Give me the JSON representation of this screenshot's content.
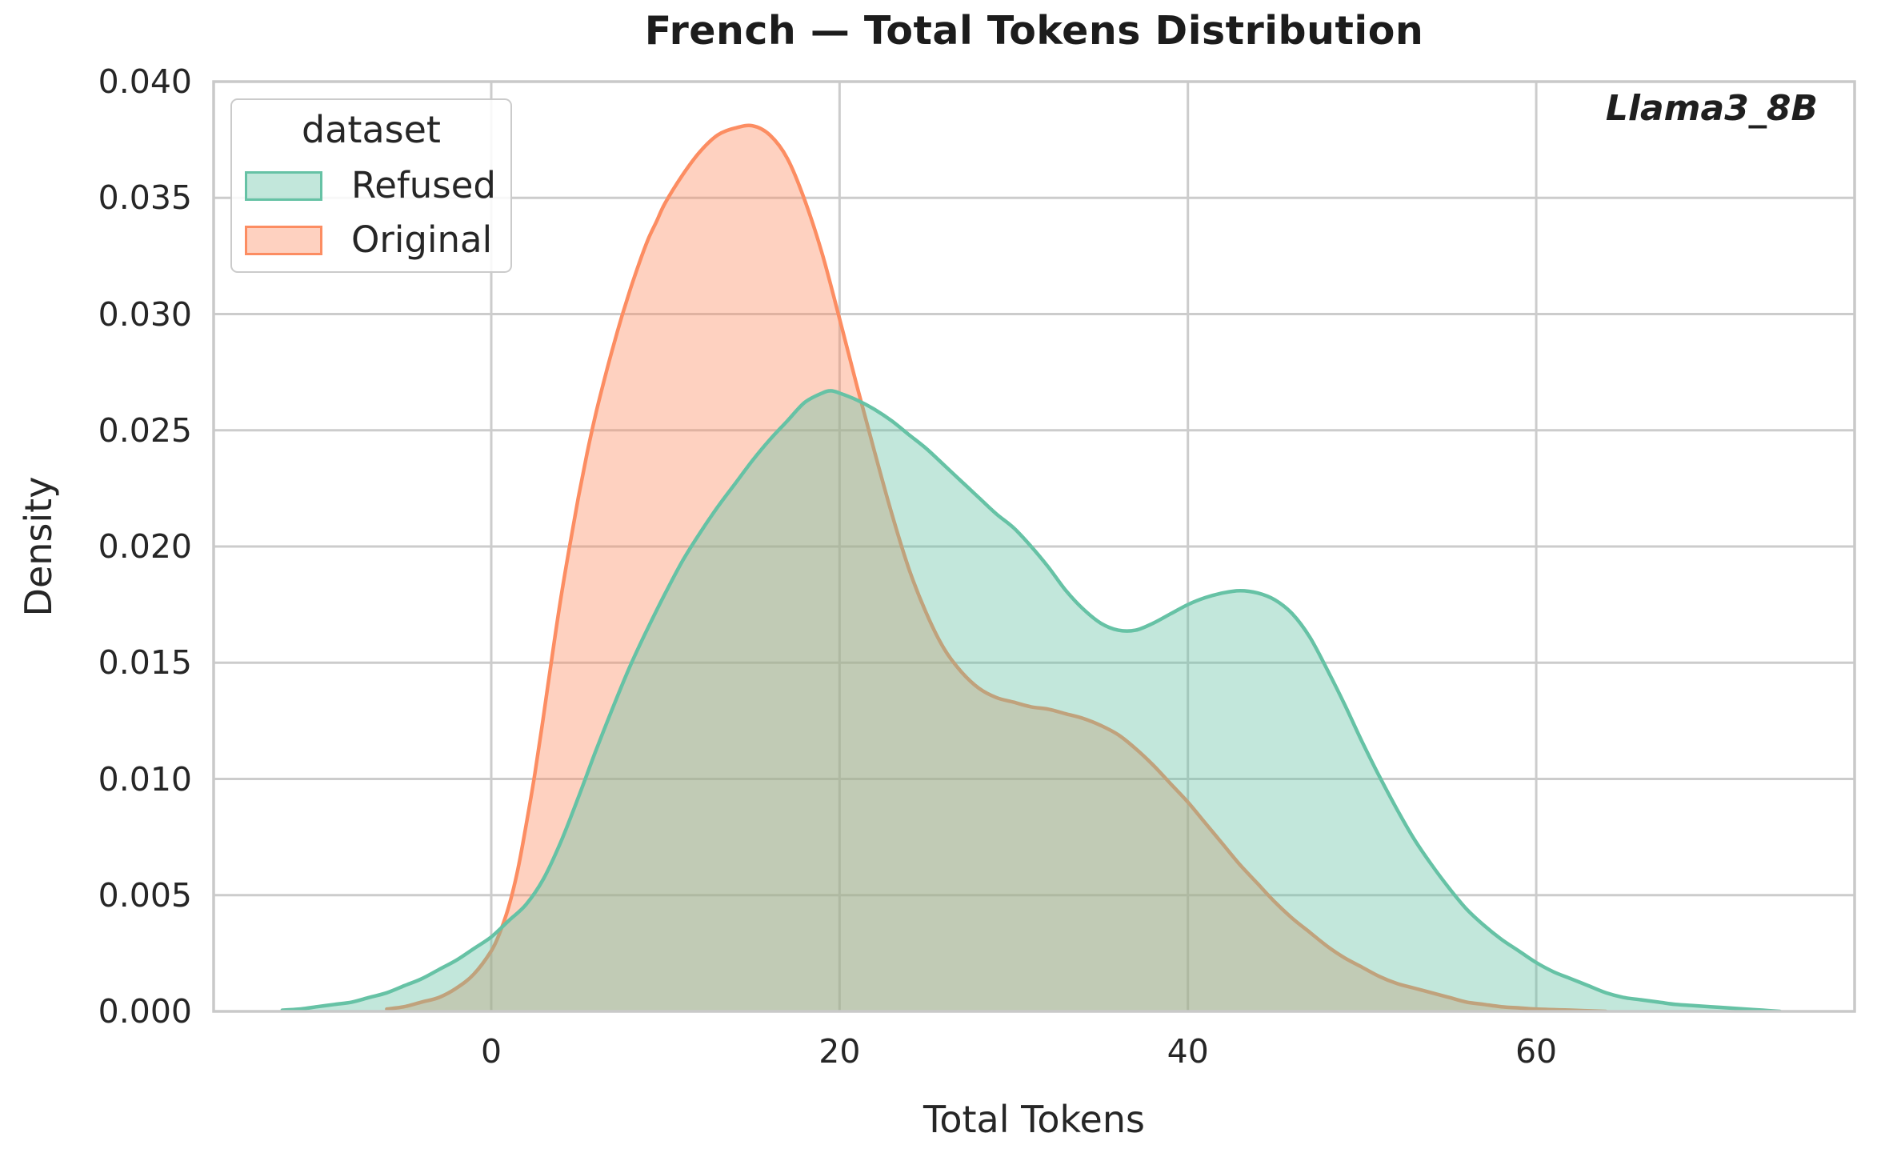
{
  "figure": {
    "title": "French — Total Tokens Distribution",
    "annotation": "Llama3_8B"
  },
  "axes": {
    "xlabel": "Total Tokens",
    "ylabel": "Density",
    "x_ticks": [
      {
        "value": 0,
        "label": "0"
      },
      {
        "value": 20,
        "label": "20"
      },
      {
        "value": 40,
        "label": "40"
      },
      {
        "value": 60,
        "label": "60"
      }
    ],
    "y_ticks": [
      {
        "value": 0.0,
        "label": "0.000"
      },
      {
        "value": 0.005,
        "label": "0.005"
      },
      {
        "value": 0.01,
        "label": "0.010"
      },
      {
        "value": 0.015,
        "label": "0.015"
      },
      {
        "value": 0.02,
        "label": "0.020"
      },
      {
        "value": 0.025,
        "label": "0.025"
      },
      {
        "value": 0.03,
        "label": "0.030"
      },
      {
        "value": 0.035,
        "label": "0.035"
      },
      {
        "value": 0.04,
        "label": "0.040"
      }
    ]
  },
  "legend": {
    "title": "dataset",
    "entries": [
      {
        "label": "Refused",
        "color": "#66c2a5"
      },
      {
        "label": "Original",
        "color": "#fc8d62"
      }
    ]
  },
  "style": {
    "grid_color": "#cccccc",
    "spine_color": "#c9c9c9",
    "background": "#ffffff",
    "fill_opacity": 0.4,
    "line_width": 4.5
  },
  "chart_data": {
    "type": "area",
    "subtype": "kde-density",
    "title": "French — Total Tokens Distribution",
    "xlabel": "Total Tokens",
    "ylabel": "Density",
    "xlim": [
      -15.94,
      78.28
    ],
    "ylim": [
      0,
      0.04
    ],
    "grid": true,
    "legend_position": "upper left",
    "series": [
      {
        "name": "Original",
        "color": "#fc8d62",
        "peak": {
          "x": 15,
          "density": 0.0381
        },
        "points": [
          [
            -6,
            0.0001
          ],
          [
            -5,
            0.0002
          ],
          [
            -4,
            0.0004
          ],
          [
            -3,
            0.0006
          ],
          [
            -2,
            0.001
          ],
          [
            -1,
            0.0016
          ],
          [
            0,
            0.0026
          ],
          [
            0.5,
            0.0034
          ],
          [
            1,
            0.0045
          ],
          [
            1.5,
            0.006
          ],
          [
            2,
            0.008
          ],
          [
            2.5,
            0.0102
          ],
          [
            3,
            0.0127
          ],
          [
            3.5,
            0.0153
          ],
          [
            4,
            0.0178
          ],
          [
            4.5,
            0.02
          ],
          [
            5,
            0.0221
          ],
          [
            5.5,
            0.024
          ],
          [
            6,
            0.0257
          ],
          [
            6.5,
            0.0272
          ],
          [
            7,
            0.0286
          ],
          [
            7.5,
            0.0299
          ],
          [
            8,
            0.0311
          ],
          [
            8.5,
            0.0322
          ],
          [
            9,
            0.0332
          ],
          [
            9.5,
            0.034
          ],
          [
            10,
            0.0348
          ],
          [
            11,
            0.036
          ],
          [
            12,
            0.037
          ],
          [
            13,
            0.0377
          ],
          [
            14,
            0.038
          ],
          [
            15,
            0.0381
          ],
          [
            16,
            0.0377
          ],
          [
            17,
            0.0367
          ],
          [
            18,
            0.0349
          ],
          [
            19,
            0.0326
          ],
          [
            20,
            0.0298
          ],
          [
            21,
            0.0269
          ],
          [
            22,
            0.0241
          ],
          [
            23,
            0.0214
          ],
          [
            24,
            0.019
          ],
          [
            25,
            0.0171
          ],
          [
            26,
            0.0156
          ],
          [
            27,
            0.0146
          ],
          [
            28,
            0.0139
          ],
          [
            29,
            0.0135
          ],
          [
            30,
            0.0133
          ],
          [
            31,
            0.0131
          ],
          [
            32,
            0.013
          ],
          [
            33,
            0.0128
          ],
          [
            34,
            0.0126
          ],
          [
            35,
            0.0123
          ],
          [
            36,
            0.0119
          ],
          [
            37,
            0.0113
          ],
          [
            38,
            0.0106
          ],
          [
            39,
            0.0098
          ],
          [
            40,
            0.009
          ],
          [
            41,
            0.0081
          ],
          [
            42,
            0.0072
          ],
          [
            43,
            0.0063
          ],
          [
            44,
            0.0055
          ],
          [
            45,
            0.0047
          ],
          [
            46,
            0.004
          ],
          [
            47,
            0.0034
          ],
          [
            48,
            0.0028
          ],
          [
            49,
            0.0023
          ],
          [
            50,
            0.0019
          ],
          [
            51,
            0.0015
          ],
          [
            52,
            0.0012
          ],
          [
            53,
            0.001
          ],
          [
            54,
            0.0008
          ],
          [
            55,
            0.0006
          ],
          [
            56,
            0.0004
          ],
          [
            57,
            0.0003
          ],
          [
            58,
            0.0002
          ],
          [
            59,
            0.00015
          ],
          [
            60,
            0.0001
          ],
          [
            62,
            5e-05
          ],
          [
            64,
            0
          ]
        ]
      },
      {
        "name": "Refused",
        "color": "#66c2a5",
        "peak": {
          "x": 19.5,
          "density": 0.0267
        },
        "second_peak": {
          "x": 43,
          "density": 0.0181
        },
        "local_min": {
          "x": 36.5,
          "density": 0.0164
        },
        "points": [
          [
            -12,
            5e-05
          ],
          [
            -11,
            0.0001
          ],
          [
            -10,
            0.0002
          ],
          [
            -9,
            0.0003
          ],
          [
            -8,
            0.0004
          ],
          [
            -7,
            0.0006
          ],
          [
            -6,
            0.0008
          ],
          [
            -5,
            0.0011
          ],
          [
            -4,
            0.0014
          ],
          [
            -3,
            0.0018
          ],
          [
            -2,
            0.0022
          ],
          [
            -1,
            0.0027
          ],
          [
            0,
            0.0032
          ],
          [
            1,
            0.0039
          ],
          [
            2,
            0.0046
          ],
          [
            3,
            0.0057
          ],
          [
            4,
            0.0073
          ],
          [
            5,
            0.0092
          ],
          [
            6,
            0.0112
          ],
          [
            7,
            0.0131
          ],
          [
            8,
            0.0149
          ],
          [
            9,
            0.0165
          ],
          [
            10,
            0.018
          ],
          [
            11,
            0.0194
          ],
          [
            12,
            0.0206
          ],
          [
            13,
            0.0217
          ],
          [
            14,
            0.0227
          ],
          [
            15,
            0.0237
          ],
          [
            16,
            0.0246
          ],
          [
            17,
            0.0254
          ],
          [
            18,
            0.0262
          ],
          [
            19,
            0.0266
          ],
          [
            19.5,
            0.0267
          ],
          [
            20,
            0.0266
          ],
          [
            21,
            0.0263
          ],
          [
            22,
            0.0259
          ],
          [
            23,
            0.0254
          ],
          [
            24,
            0.0248
          ],
          [
            25,
            0.0242
          ],
          [
            26,
            0.0235
          ],
          [
            27,
            0.0228
          ],
          [
            28,
            0.0221
          ],
          [
            29,
            0.0214
          ],
          [
            30,
            0.0208
          ],
          [
            31,
            0.02
          ],
          [
            32,
            0.0191
          ],
          [
            33,
            0.0181
          ],
          [
            34,
            0.0173
          ],
          [
            35,
            0.0167
          ],
          [
            36,
            0.0164
          ],
          [
            37,
            0.0164
          ],
          [
            38,
            0.0167
          ],
          [
            39,
            0.0171
          ],
          [
            40,
            0.0175
          ],
          [
            41,
            0.0178
          ],
          [
            42,
            0.018
          ],
          [
            43,
            0.0181
          ],
          [
            44,
            0.018
          ],
          [
            45,
            0.0177
          ],
          [
            46,
            0.0171
          ],
          [
            47,
            0.0161
          ],
          [
            48,
            0.0147
          ],
          [
            49,
            0.0132
          ],
          [
            50,
            0.0116
          ],
          [
            51,
            0.0101
          ],
          [
            52,
            0.0087
          ],
          [
            53,
            0.0074
          ],
          [
            54,
            0.0063
          ],
          [
            55,
            0.0053
          ],
          [
            56,
            0.0044
          ],
          [
            57,
            0.0037
          ],
          [
            58,
            0.0031
          ],
          [
            59,
            0.0026
          ],
          [
            60,
            0.0021
          ],
          [
            61,
            0.0017
          ],
          [
            62,
            0.0014
          ],
          [
            63,
            0.0011
          ],
          [
            64,
            0.0008
          ],
          [
            65,
            0.0006
          ],
          [
            66,
            0.0005
          ],
          [
            67,
            0.0004
          ],
          [
            68,
            0.0003
          ],
          [
            69,
            0.00025
          ],
          [
            70,
            0.0002
          ],
          [
            71,
            0.00015
          ],
          [
            72,
            0.0001
          ],
          [
            73,
            5e-05
          ],
          [
            74,
            0
          ]
        ]
      }
    ]
  }
}
